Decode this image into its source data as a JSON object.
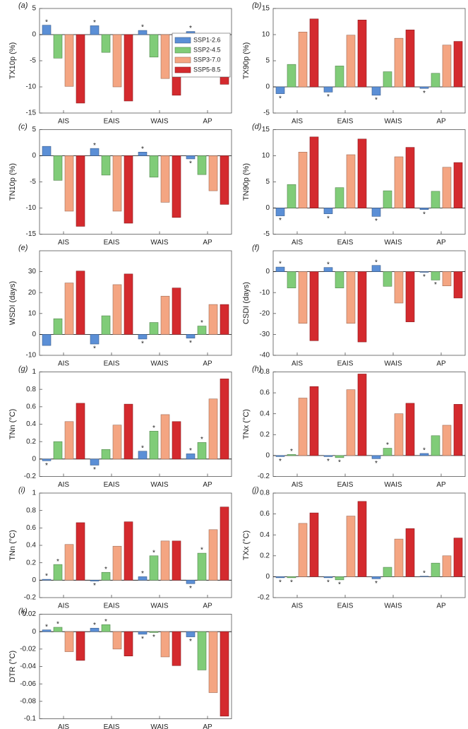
{
  "chart_data": [
    {
      "type": "bar",
      "label": "(a)",
      "ylabel": "TX10p (%)",
      "categories": [
        "AIS",
        "EAIS",
        "WAIS",
        "AP"
      ],
      "ylim": [
        -15,
        5
      ],
      "yticks": [
        -15,
        -10,
        -5,
        0,
        5
      ],
      "marker": "*",
      "legend": "right",
      "series": [
        {
          "name": "SSP1-2.6",
          "color": "#5b8fd6",
          "values": [
            1.8,
            1.7,
            0.8,
            0.6
          ],
          "significant": [
            true,
            true,
            true,
            true
          ]
        },
        {
          "name": "SSP2-4.5",
          "color": "#80cc78",
          "values": [
            -4.5,
            -3.4,
            -4.3,
            -3.5
          ],
          "significant": [
            false,
            false,
            false,
            false
          ]
        },
        {
          "name": "SSP3-7.0",
          "color": "#f4a582",
          "values": [
            -9.9,
            -10.0,
            -8.4,
            -7.0
          ],
          "significant": [
            false,
            false,
            false,
            false
          ]
        },
        {
          "name": "SSP5-8.5",
          "color": "#d42a2e",
          "values": [
            -13.1,
            -12.7,
            -11.6,
            -9.5
          ],
          "significant": [
            false,
            false,
            false,
            false
          ]
        }
      ]
    },
    {
      "type": "bar",
      "label": "(b)",
      "ylabel": "TX90p (%)",
      "categories": [
        "AIS",
        "EAIS",
        "WAIS",
        "AP"
      ],
      "ylim": [
        -5,
        15
      ],
      "yticks": [
        -5,
        0,
        5,
        10,
        15
      ],
      "marker": "*",
      "series": [
        {
          "name": "SSP1-2.6",
          "color": "#5b8fd6",
          "values": [
            -1.3,
            -1.0,
            -1.6,
            -0.3
          ],
          "significant": [
            true,
            true,
            true,
            true
          ]
        },
        {
          "name": "SSP2-4.5",
          "color": "#80cc78",
          "values": [
            4.3,
            4.0,
            2.9,
            2.6
          ],
          "significant": [
            false,
            false,
            false,
            false
          ]
        },
        {
          "name": "SSP3-7.0",
          "color": "#f4a582",
          "values": [
            10.5,
            9.9,
            9.3,
            8.0
          ],
          "significant": [
            false,
            false,
            false,
            false
          ]
        },
        {
          "name": "SSP5-8.5",
          "color": "#d42a2e",
          "values": [
            13.0,
            12.8,
            10.9,
            8.7
          ],
          "significant": [
            false,
            false,
            false,
            false
          ]
        }
      ]
    },
    {
      "type": "bar",
      "label": "(c)",
      "ylabel": "TN10p (%)",
      "categories": [
        "AIS",
        "EAIS",
        "WAIS",
        "AP"
      ],
      "ylim": [
        -15,
        5
      ],
      "yticks": [
        -15,
        -10,
        -5,
        0,
        5
      ],
      "marker": "*",
      "series": [
        {
          "name": "SSP1-2.6",
          "color": "#5b8fd6",
          "values": [
            1.8,
            1.4,
            0.7,
            -0.6
          ],
          "significant": [
            false,
            true,
            true,
            true
          ]
        },
        {
          "name": "SSP2-4.5",
          "color": "#80cc78",
          "values": [
            -4.7,
            -3.7,
            -4.1,
            -3.6
          ],
          "significant": [
            false,
            false,
            false,
            false
          ]
        },
        {
          "name": "SSP3-7.0",
          "color": "#f4a582",
          "values": [
            -10.6,
            -10.6,
            -8.9,
            -6.7
          ],
          "significant": [
            false,
            false,
            false,
            false
          ]
        },
        {
          "name": "SSP5-8.5",
          "color": "#d42a2e",
          "values": [
            -13.5,
            -12.9,
            -11.8,
            -9.3
          ],
          "significant": [
            false,
            false,
            false,
            false
          ]
        }
      ]
    },
    {
      "type": "bar",
      "label": "(d)",
      "ylabel": "TN90p (%)",
      "categories": [
        "AIS",
        "EAIS",
        "WAIS",
        "AP"
      ],
      "ylim": [
        -5,
        15
      ],
      "yticks": [
        -5,
        0,
        5,
        10,
        15
      ],
      "marker": "*",
      "series": [
        {
          "name": "SSP1-2.6",
          "color": "#5b8fd6",
          "values": [
            -1.5,
            -1.1,
            -1.6,
            -0.3
          ],
          "significant": [
            true,
            true,
            true,
            true
          ]
        },
        {
          "name": "SSP2-4.5",
          "color": "#80cc78",
          "values": [
            4.5,
            3.9,
            3.3,
            3.2
          ],
          "significant": [
            false,
            false,
            false,
            false
          ]
        },
        {
          "name": "SSP3-7.0",
          "color": "#f4a582",
          "values": [
            10.7,
            10.2,
            9.8,
            7.8
          ],
          "significant": [
            false,
            false,
            false,
            false
          ]
        },
        {
          "name": "SSP5-8.5",
          "color": "#d42a2e",
          "values": [
            13.6,
            13.2,
            11.6,
            8.7
          ],
          "significant": [
            false,
            false,
            false,
            false
          ]
        }
      ]
    },
    {
      "type": "bar",
      "label": "(e)",
      "ylabel": "WSDI (days)",
      "categories": [
        "AIS",
        "EAIS",
        "WAIS",
        "AP"
      ],
      "ylim": [
        -10,
        40
      ],
      "yticks": [
        -10,
        0,
        10,
        20,
        30
      ],
      "marker": "*",
      "series": [
        {
          "name": "SSP1-2.6",
          "color": "#5b8fd6",
          "values": [
            -5.3,
            -4.6,
            -2.2,
            -1.8
          ],
          "significant": [
            false,
            true,
            true,
            true
          ]
        },
        {
          "name": "SSP2-4.5",
          "color": "#80cc78",
          "values": [
            7.5,
            8.9,
            5.7,
            4.0
          ],
          "significant": [
            false,
            false,
            false,
            true
          ]
        },
        {
          "name": "SSP3-7.0",
          "color": "#f4a582",
          "values": [
            24.6,
            23.8,
            18.3,
            14.3
          ],
          "significant": [
            false,
            false,
            false,
            false
          ]
        },
        {
          "name": "SSP5-8.5",
          "color": "#d42a2e",
          "values": [
            30.3,
            28.9,
            22.2,
            14.3
          ],
          "significant": [
            false,
            false,
            false,
            false
          ]
        }
      ]
    },
    {
      "type": "bar",
      "label": "(f)",
      "ylabel": "CSDI (days)",
      "categories": [
        "AIS",
        "EAIS",
        "WAIS",
        "AP"
      ],
      "ylim": [
        -40,
        10
      ],
      "yticks": [
        -40,
        -30,
        -20,
        -10,
        0
      ],
      "marker": "*",
      "series": [
        {
          "name": "SSP1-2.6",
          "color": "#5b8fd6",
          "values": [
            2.2,
            2.0,
            3.0,
            -0.3
          ],
          "significant": [
            true,
            true,
            true,
            true
          ]
        },
        {
          "name": "SSP2-4.5",
          "color": "#80cc78",
          "values": [
            -7.8,
            -7.8,
            -7.0,
            -4.0
          ],
          "significant": [
            false,
            false,
            false,
            true
          ]
        },
        {
          "name": "SSP3-7.0",
          "color": "#f4a582",
          "values": [
            -24.7,
            -24.7,
            -15.0,
            -6.8
          ],
          "significant": [
            false,
            false,
            false,
            false
          ]
        },
        {
          "name": "SSP5-8.5",
          "color": "#d42a2e",
          "values": [
            -33.0,
            -33.6,
            -24.0,
            -12.6
          ],
          "significant": [
            false,
            false,
            false,
            false
          ]
        }
      ]
    },
    {
      "type": "bar",
      "label": "(g)",
      "ylabel": "TNn (°C)",
      "categories": [
        "AIS",
        "EAIS",
        "WAIS",
        "AP"
      ],
      "ylim": [
        -0.2,
        1
      ],
      "yticks": [
        -0.2,
        0,
        0.2,
        0.4,
        0.6,
        0.8,
        1
      ],
      "marker": "*",
      "series": [
        {
          "name": "SSP1-2.6",
          "color": "#5b8fd6",
          "values": [
            -0.02,
            -0.07,
            0.09,
            0.06
          ],
          "significant": [
            true,
            true,
            true,
            true
          ]
        },
        {
          "name": "SSP2-4.5",
          "color": "#80cc78",
          "values": [
            0.2,
            0.11,
            0.32,
            0.19
          ],
          "significant": [
            false,
            false,
            true,
            true
          ]
        },
        {
          "name": "SSP3-7.0",
          "color": "#f4a582",
          "values": [
            0.43,
            0.39,
            0.51,
            0.69
          ],
          "significant": [
            false,
            false,
            false,
            false
          ]
        },
        {
          "name": "SSP5-8.5",
          "color": "#d42a2e",
          "values": [
            0.64,
            0.63,
            0.43,
            0.92
          ],
          "significant": [
            false,
            false,
            false,
            false
          ]
        }
      ]
    },
    {
      "type": "bar",
      "label": "(h)",
      "ylabel": "TNx (°C)",
      "categories": [
        "AIS",
        "EAIS",
        "WAIS",
        "AP"
      ],
      "ylim": [
        -0.2,
        0.8
      ],
      "yticks": [
        -0.2,
        0,
        0.2,
        0.4,
        0.6,
        0.8
      ],
      "marker": "*",
      "series": [
        {
          "name": "SSP1-2.6",
          "color": "#5b8fd6",
          "values": [
            -0.01,
            -0.01,
            -0.03,
            0.02
          ],
          "significant": [
            true,
            true,
            true,
            true
          ]
        },
        {
          "name": "SSP2-4.5",
          "color": "#80cc78",
          "values": [
            0.01,
            -0.02,
            0.07,
            0.19
          ],
          "significant": [
            true,
            true,
            true,
            false
          ]
        },
        {
          "name": "SSP3-7.0",
          "color": "#f4a582",
          "values": [
            0.55,
            0.63,
            0.4,
            0.29
          ],
          "significant": [
            false,
            false,
            false,
            false
          ]
        },
        {
          "name": "SSP5-8.5",
          "color": "#d42a2e",
          "values": [
            0.66,
            0.78,
            0.5,
            0.49
          ],
          "significant": [
            false,
            false,
            false,
            false
          ]
        }
      ]
    },
    {
      "type": "bar",
      "label": "(i)",
      "ylabel": "TNn (°C)",
      "categories": [
        "AIS",
        "EAIS",
        "WAIS",
        "AP"
      ],
      "ylim": [
        -0.2,
        1
      ],
      "yticks": [
        -0.2,
        0,
        0.2,
        0.4,
        0.6,
        0.8,
        1
      ],
      "marker": "*",
      "series": [
        {
          "name": "SSP1-2.6",
          "color": "#5b8fd6",
          "values": [
            0.01,
            -0.01,
            0.04,
            -0.04
          ],
          "significant": [
            true,
            true,
            true,
            true
          ]
        },
        {
          "name": "SSP2-4.5",
          "color": "#80cc78",
          "values": [
            0.18,
            0.09,
            0.28,
            0.31
          ],
          "significant": [
            true,
            true,
            true,
            true
          ]
        },
        {
          "name": "SSP3-7.0",
          "color": "#f4a582",
          "values": [
            0.41,
            0.39,
            0.45,
            0.58
          ],
          "significant": [
            false,
            false,
            false,
            false
          ]
        },
        {
          "name": "SSP5-8.5",
          "color": "#d42a2e",
          "values": [
            0.66,
            0.67,
            0.45,
            0.84
          ],
          "significant": [
            false,
            false,
            false,
            false
          ]
        }
      ]
    },
    {
      "type": "bar",
      "label": "(j)",
      "ylabel": "TXx (°C)",
      "categories": [
        "AIS",
        "EAIS",
        "WAIS",
        "AP"
      ],
      "ylim": [
        -0.2,
        0.8
      ],
      "yticks": [
        -0.2,
        0,
        0.2,
        0.4,
        0.6,
        0.8
      ],
      "marker": "*",
      "series": [
        {
          "name": "SSP1-2.6",
          "color": "#5b8fd6",
          "values": [
            -0.01,
            -0.01,
            -0.02,
            0.005
          ],
          "significant": [
            true,
            true,
            true,
            true
          ]
        },
        {
          "name": "SSP2-4.5",
          "color": "#80cc78",
          "values": [
            -0.01,
            -0.03,
            0.09,
            0.13
          ],
          "significant": [
            true,
            true,
            false,
            false
          ]
        },
        {
          "name": "SSP3-7.0",
          "color": "#f4a582",
          "values": [
            0.51,
            0.58,
            0.36,
            0.2
          ],
          "significant": [
            false,
            false,
            false,
            false
          ]
        },
        {
          "name": "SSP5-8.5",
          "color": "#d42a2e",
          "values": [
            0.61,
            0.72,
            0.46,
            0.37
          ],
          "significant": [
            false,
            false,
            false,
            false
          ]
        }
      ]
    },
    {
      "type": "bar",
      "label": "(k)",
      "ylabel": "DTR (°C)",
      "categories": [
        "AIS",
        "EAIS",
        "WAIS",
        "AP"
      ],
      "ylim": [
        -0.1,
        0.02
      ],
      "yticks": [
        -0.1,
        -0.08,
        -0.06,
        -0.04,
        -0.02,
        0,
        0.02
      ],
      "marker": "*",
      "series": [
        {
          "name": "SSP1-2.6",
          "color": "#5b8fd6",
          "values": [
            0.002,
            0.004,
            -0.003,
            -0.006
          ],
          "significant": [
            true,
            true,
            true,
            true
          ]
        },
        {
          "name": "SSP2-4.5",
          "color": "#80cc78",
          "values": [
            0.005,
            0.008,
            -0.001,
            -0.044
          ],
          "significant": [
            true,
            true,
            true,
            false
          ]
        },
        {
          "name": "SSP3-7.0",
          "color": "#f4a582",
          "values": [
            -0.023,
            -0.02,
            -0.029,
            -0.07
          ],
          "significant": [
            false,
            false,
            false,
            false
          ]
        },
        {
          "name": "SSP5-8.5",
          "color": "#d42a2e",
          "values": [
            -0.033,
            -0.028,
            -0.039,
            -0.097
          ],
          "significant": [
            false,
            false,
            false,
            false
          ]
        }
      ]
    }
  ]
}
